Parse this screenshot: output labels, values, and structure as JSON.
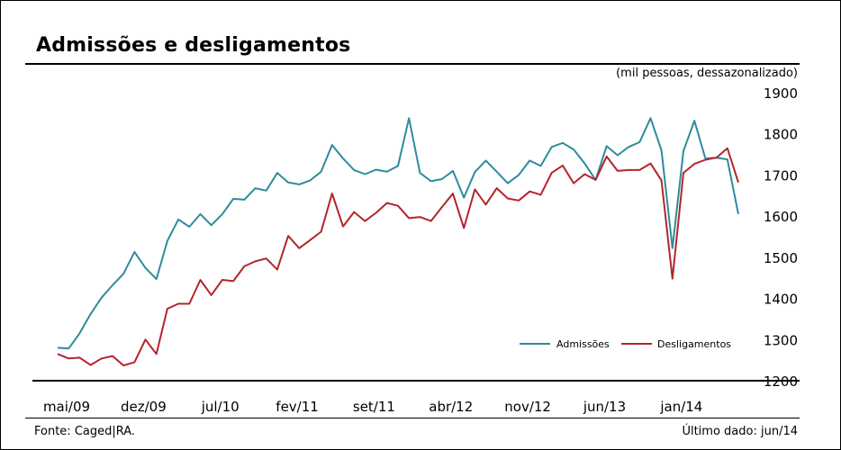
{
  "title": "Admissões e desligamentos",
  "unit_label": "(mil pessoas, dessazonalizado)",
  "source": "Fonte: Caged|RA.",
  "last_data": "Último dado: jun/14",
  "colors": {
    "admissoes": "#2e8b9c",
    "desligamentos": "#b5242b",
    "axis": "#000000"
  },
  "chart_data": {
    "type": "line",
    "title": "Admissões e desligamentos",
    "ylabel": "(mil pessoas, dessazonalizado)",
    "ylim": [
      1200,
      1900
    ],
    "yticks": [
      1200,
      1300,
      1400,
      1500,
      1600,
      1700,
      1800,
      1900
    ],
    "grid": false,
    "legend_position": "bottom-right",
    "x_tick_labels": [
      {
        "label": "mai/09",
        "index": 0
      },
      {
        "label": "dez/09",
        "index": 7
      },
      {
        "label": "jul/10",
        "index": 14
      },
      {
        "label": "fev/11",
        "index": 21
      },
      {
        "label": "set/11",
        "index": 28
      },
      {
        "label": "abr/12",
        "index": 35
      },
      {
        "label": "nov/12",
        "index": 42
      },
      {
        "label": "jun/13",
        "index": 49
      },
      {
        "label": "jan/14",
        "index": 56
      }
    ],
    "x_start": "mai/09",
    "x_end": "jun/14",
    "series": [
      {
        "name": "Admissões",
        "color": "#2e8b9c",
        "values": [
          1280,
          1278,
          1315,
          1362,
          1402,
          1432,
          1460,
          1513,
          1474,
          1447,
          1540,
          1592,
          1574,
          1605,
          1578,
          1605,
          1642,
          1640,
          1668,
          1662,
          1705,
          1682,
          1677,
          1687,
          1708,
          1773,
          1740,
          1712,
          1702,
          1713,
          1708,
          1722,
          1838,
          1705,
          1685,
          1690,
          1710,
          1645,
          1707,
          1735,
          1708,
          1680,
          1700,
          1735,
          1722,
          1768,
          1778,
          1762,
          1728,
          1688,
          1770,
          1748,
          1768,
          1780,
          1838,
          1760,
          1522,
          1758,
          1832,
          1740,
          1742,
          1738,
          1605
        ]
      },
      {
        "name": "Desligamentos",
        "color": "#b5242b",
        "values": [
          1265,
          1254,
          1256,
          1238,
          1254,
          1260,
          1237,
          1245,
          1300,
          1265,
          1375,
          1387,
          1387,
          1445,
          1408,
          1445,
          1442,
          1478,
          1490,
          1497,
          1470,
          1552,
          1522,
          1542,
          1562,
          1655,
          1575,
          1610,
          1588,
          1608,
          1632,
          1625,
          1595,
          1598,
          1588,
          1622,
          1655,
          1571,
          1665,
          1628,
          1668,
          1643,
          1638,
          1660,
          1652,
          1705,
          1723,
          1680,
          1702,
          1688,
          1745,
          1710,
          1712,
          1712,
          1728,
          1687,
          1448,
          1705,
          1727,
          1737,
          1742,
          1765,
          1682
        ]
      }
    ]
  }
}
